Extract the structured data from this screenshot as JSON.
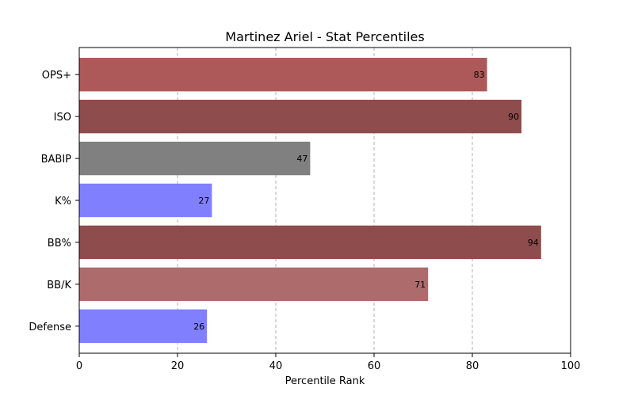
{
  "chart_data": {
    "type": "bar",
    "orientation": "horizontal",
    "title": "Martinez Ariel - Stat Percentiles",
    "xlabel": "Percentile Rank",
    "ylabel": "",
    "xlim": [
      0,
      100
    ],
    "xticks": [
      0,
      20,
      40,
      60,
      80,
      100
    ],
    "grid": "x-dashed",
    "categories": [
      "OPS+",
      "ISO",
      "BABIP",
      "K%",
      "BB%",
      "BB/K",
      "Defense"
    ],
    "values": [
      83,
      90,
      47,
      27,
      94,
      71,
      26
    ],
    "bar_colors": [
      "#ad5959",
      "#8f4c4c",
      "#808080",
      "#8080ff",
      "#8f4c4c",
      "#ad6b6b",
      "#8080ff"
    ]
  }
}
